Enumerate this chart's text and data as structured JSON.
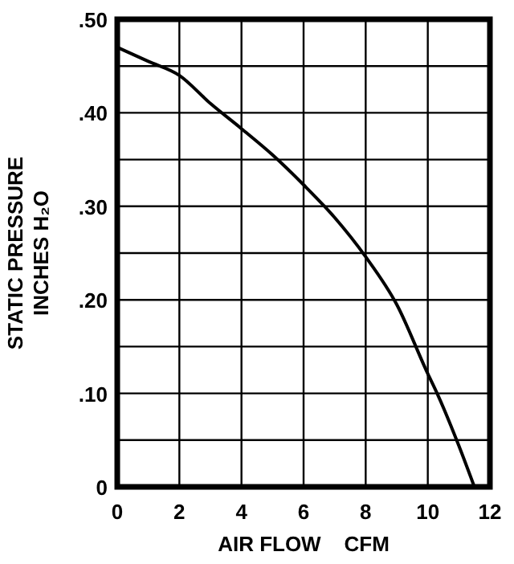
{
  "chart_data": {
    "type": "line",
    "xlabel": "AIR FLOW    CFM",
    "ylabel": "STATIC PRESSURE\nINCHES H₂O",
    "x": [
      0,
      1,
      2,
      3,
      4,
      5,
      6,
      7,
      8,
      9,
      10,
      10.3,
      11,
      11.5
    ],
    "series": [
      {
        "color": "#000000",
        "values": [
          0.47,
          0.455,
          0.44,
          0.41,
          0.383,
          0.355,
          0.323,
          0.288,
          0.246,
          0.195,
          0.121,
          0.1,
          0.044,
          0
        ]
      }
    ],
    "xlim": [
      0,
      12
    ],
    "xticks": [
      0,
      2,
      4,
      6,
      8,
      10,
      12
    ],
    "ylim": [
      0,
      0.5
    ],
    "yticks": [
      {
        "value": 0,
        "label": "0"
      },
      {
        "value": 0.05,
        "label": null
      },
      {
        "value": 0.1,
        "label": ".10"
      },
      {
        "value": 0.15,
        "label": null
      },
      {
        "value": 0.2,
        "label": ".20"
      },
      {
        "value": 0.25,
        "label": null
      },
      {
        "value": 0.3,
        "label": ".30"
      },
      {
        "value": 0.35,
        "label": null
      },
      {
        "value": 0.4,
        "label": ".40"
      },
      {
        "value": 0.45,
        "label": null
      },
      {
        "value": 0.5,
        "label": ".50"
      }
    ],
    "grid": true,
    "marker": "none",
    "line_style": "solid"
  }
}
